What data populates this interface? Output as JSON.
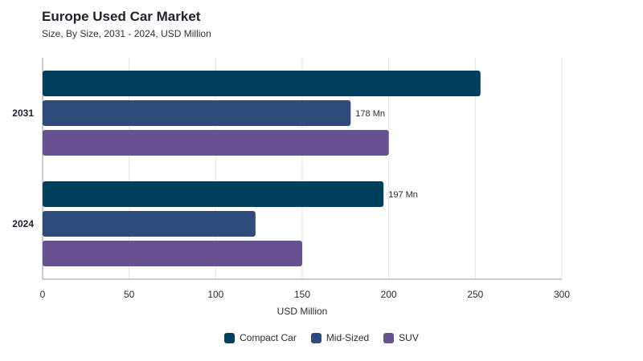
{
  "chart_data": {
    "type": "bar",
    "orientation": "horizontal",
    "title": "Europe Used Car Market",
    "subtitle": "Size, By Size, 2031 - 2024, USD Million",
    "xlabel": "USD Million",
    "ylabel": "",
    "xlim": [
      0,
      300
    ],
    "xticks": [
      0,
      50,
      100,
      150,
      200,
      250,
      300
    ],
    "categories": [
      "2031",
      "2024"
    ],
    "series": [
      {
        "name": "Compact Car",
        "color": "#003f5c",
        "values": [
          253,
          197
        ]
      },
      {
        "name": "Mid-Sized",
        "color": "#2f4b7c",
        "values": [
          178,
          123
        ]
      },
      {
        "name": "SUV",
        "color": "#665191",
        "values": [
          200,
          150
        ]
      }
    ],
    "data_labels": [
      {
        "category": "2031",
        "series": "Mid-Sized",
        "text": "178 Mn"
      },
      {
        "category": "2024",
        "series": "Compact Car",
        "text": "197 Mn"
      }
    ],
    "grid": true,
    "legend_position": "bottom"
  }
}
